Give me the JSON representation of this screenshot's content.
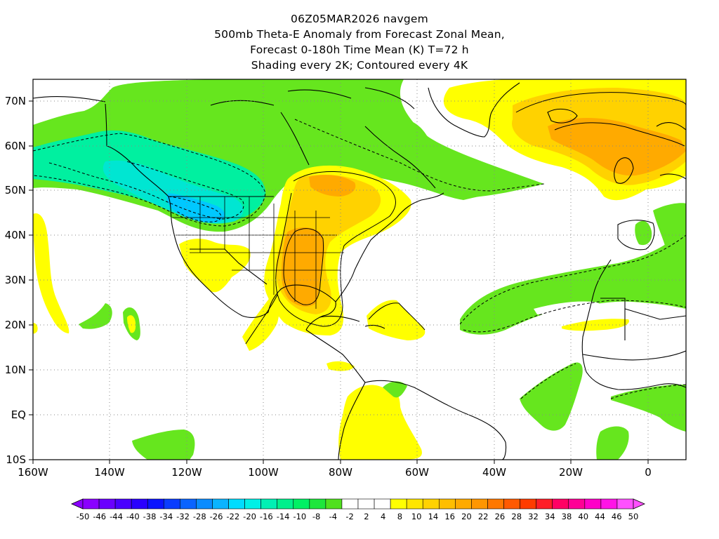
{
  "title": {
    "line1": "06Z05MAR2026 navgem",
    "line2": "500mb Theta-E Anomaly from Forecast Zonal Mean,",
    "line3": "Forecast 0-180h Time Mean (K) T=72 h",
    "line4": "Shading every 2K; Contoured every 4K"
  },
  "axes": {
    "lon_labels": [
      "160W",
      "140W",
      "120W",
      "100W",
      "80W",
      "60W",
      "40W",
      "20W",
      "0"
    ],
    "lat_labels": [
      "70N",
      "60N",
      "50N",
      "40N",
      "30N",
      "20N",
      "10N",
      "EQ",
      "10S"
    ]
  },
  "colorbar": {
    "labels": [
      "-50",
      "-46",
      "-44",
      "-40",
      "-38",
      "-34",
      "-32",
      "-28",
      "-26",
      "-22",
      "-20",
      "-16",
      "-14",
      "-10",
      "-8",
      "-4",
      "-2",
      "2",
      "4",
      "8",
      "10",
      "14",
      "16",
      "20",
      "22",
      "26",
      "28",
      "32",
      "34",
      "38",
      "40",
      "44",
      "46",
      "50"
    ],
    "colors": [
      "#8a00ff",
      "#6a00ff",
      "#4a00ff",
      "#2a00ff",
      "#0a14ff",
      "#0a3cff",
      "#0a64ff",
      "#0a8cff",
      "#0ab4ff",
      "#00dcff",
      "#00f0e6",
      "#00f0b4",
      "#00f08c",
      "#00f064",
      "#1ee63c",
      "#50e01e",
      "#ffffff",
      "#ffffff",
      "#ffffff",
      "#ffff00",
      "#ffe600",
      "#ffd200",
      "#ffbe00",
      "#ffaa00",
      "#ff9600",
      "#ff7800",
      "#ff5a00",
      "#ff3c00",
      "#ff1e28",
      "#ff0064",
      "#ff0096",
      "#ff00c8",
      "#ff14e6",
      "#ff50ff"
    ]
  },
  "colors": {
    "green": "#66e61e",
    "cyan_green": "#00f08c",
    "cyan": "#00e6c8",
    "blue": "#00c8ff",
    "yellow": "#ffff00",
    "gold": "#ffd200",
    "orange": "#ffaa00",
    "dark_orange": "#ff8c00"
  }
}
